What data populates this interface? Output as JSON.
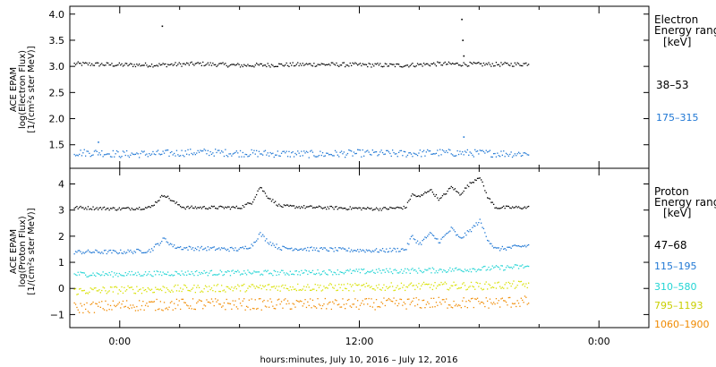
{
  "colors": {
    "frame": "#000000",
    "black": "#000000",
    "blue": "#1f77d4",
    "cyan": "#22d4d4",
    "yellow": "#d8e000",
    "orange": "#f08a00"
  },
  "chart_data": [
    {
      "type": "scatter",
      "panel": "electron",
      "title": "",
      "ylabel_lines": [
        "ACE EPAM",
        "log(Electron Flux)",
        "[1/(cm²s ster MeV)]"
      ],
      "ylim": [
        1.05,
        4.15
      ],
      "ytick_labels": [
        "1.5",
        "2.0",
        "2.5",
        "3.0",
        "3.5",
        "4.0"
      ],
      "yticks": [
        1.5,
        2.0,
        2.5,
        3.0,
        3.5,
        4.0
      ],
      "grid": false,
      "legend": {
        "placement": "right",
        "heading_lines": [
          "Electron",
          "Energy range",
          "[keV]"
        ],
        "entries": [
          "38–53",
          "175–315"
        ]
      },
      "series": [
        {
          "name": "38–53",
          "color": "black",
          "values": [
            [
              -2.3,
              3.05
            ],
            [
              -1,
              3.04
            ],
            [
              0,
              3.03
            ],
            [
              2,
              3.03
            ],
            [
              4,
              3.05
            ],
            [
              6,
              3.02
            ],
            [
              8,
              3.03
            ],
            [
              10,
              3.04
            ],
            [
              12,
              3.03
            ],
            [
              14,
              3.02
            ],
            [
              16,
              3.05
            ],
            [
              18,
              3.04
            ],
            [
              20,
              3.04
            ],
            [
              20.5,
              3.06
            ]
          ],
          "noise": 0.04,
          "outliers": [
            [
              2.1,
              3.77
            ],
            [
              17.1,
              3.9
            ],
            [
              17.15,
              3.5
            ],
            [
              17.2,
              3.2
            ]
          ]
        },
        {
          "name": "175–315",
          "color": "blue",
          "values": [
            [
              -2.3,
              1.35
            ],
            [
              -1,
              1.35
            ],
            [
              0,
              1.32
            ],
            [
              2,
              1.33
            ],
            [
              4,
              1.36
            ],
            [
              6,
              1.34
            ],
            [
              8,
              1.33
            ],
            [
              10,
              1.32
            ],
            [
              12,
              1.34
            ],
            [
              14,
              1.33
            ],
            [
              16,
              1.35
            ],
            [
              18,
              1.34
            ],
            [
              20,
              1.33
            ],
            [
              20.5,
              1.34
            ]
          ],
          "noise": 0.07,
          "outliers": [
            [
              -1.1,
              1.55
            ],
            [
              17.2,
              1.65
            ]
          ]
        }
      ]
    },
    {
      "type": "scatter",
      "panel": "proton",
      "title": "",
      "ylabel_lines": [
        "ACE EPAM",
        "log(Proton Flux)",
        "[1/(cm²s ster MeV)]"
      ],
      "ylim": [
        -1.5,
        4.6
      ],
      "ytick_labels": [
        "−1",
        "0",
        "1",
        "2",
        "3",
        "4"
      ],
      "yticks": [
        -1,
        0,
        1,
        2,
        3,
        4
      ],
      "xlim": [
        -2.5,
        26.5
      ],
      "xticks": [
        0,
        12,
        24
      ],
      "xtick_labels": [
        "0:00",
        "12:00",
        "0:00"
      ],
      "xlabel": "hours:minutes, July 10, 2016 – July 12, 2016",
      "grid": false,
      "legend": {
        "placement": "right",
        "heading_lines": [
          "Proton",
          "Energy range",
          "[keV]"
        ],
        "entries": [
          "47–68",
          "115–195",
          "310–580",
          "795–1193",
          "1060–1900"
        ]
      },
      "series": [
        {
          "name": "47–68",
          "color": "black",
          "values": [
            [
              -2.3,
              3.1
            ],
            [
              0,
              3.05
            ],
            [
              1.5,
              3.1
            ],
            [
              2.2,
              3.6
            ],
            [
              2.7,
              3.3
            ],
            [
              3.2,
              3.1
            ],
            [
              6,
              3.1
            ],
            [
              6.6,
              3.3
            ],
            [
              7,
              3.9
            ],
            [
              7.4,
              3.5
            ],
            [
              8,
              3.15
            ],
            [
              10,
              3.1
            ],
            [
              13,
              3.05
            ],
            [
              14.3,
              3.1
            ],
            [
              14.6,
              3.6
            ],
            [
              15,
              3.5
            ],
            [
              15.5,
              3.8
            ],
            [
              16,
              3.4
            ],
            [
              16.6,
              3.9
            ],
            [
              17,
              3.6
            ],
            [
              17.5,
              4.0
            ],
            [
              18,
              4.3
            ],
            [
              18.4,
              3.5
            ],
            [
              18.8,
              3.1
            ],
            [
              20.5,
              3.1
            ]
          ],
          "noise": 0.06
        },
        {
          "name": "115–195",
          "color": "blue",
          "values": [
            [
              -2.3,
              1.4
            ],
            [
              0,
              1.4
            ],
            [
              1.5,
              1.45
            ],
            [
              2.2,
              1.9
            ],
            [
              2.7,
              1.6
            ],
            [
              3.2,
              1.55
            ],
            [
              6,
              1.5
            ],
            [
              6.6,
              1.65
            ],
            [
              7,
              2.1
            ],
            [
              7.4,
              1.8
            ],
            [
              8,
              1.55
            ],
            [
              10,
              1.5
            ],
            [
              13,
              1.45
            ],
            [
              14.3,
              1.5
            ],
            [
              14.6,
              2.0
            ],
            [
              15,
              1.7
            ],
            [
              15.5,
              2.1
            ],
            [
              16,
              1.8
            ],
            [
              16.6,
              2.3
            ],
            [
              17,
              1.9
            ],
            [
              17.5,
              2.2
            ],
            [
              18,
              2.6
            ],
            [
              18.4,
              1.9
            ],
            [
              18.8,
              1.5
            ],
            [
              20.5,
              1.65
            ]
          ],
          "noise": 0.08
        },
        {
          "name": "310–580",
          "color": "cyan",
          "values": [
            [
              -2.3,
              0.55
            ],
            [
              0,
              0.55
            ],
            [
              4,
              0.6
            ],
            [
              8,
              0.6
            ],
            [
              12,
              0.65
            ],
            [
              16,
              0.7
            ],
            [
              18,
              0.75
            ],
            [
              20.5,
              0.85
            ]
          ],
          "noise": 0.1
        },
        {
          "name": "795–1193",
          "color": "yellow",
          "values": [
            [
              -2.3,
              -0.1
            ],
            [
              0,
              -0.05
            ],
            [
              4,
              0.0
            ],
            [
              8,
              0.05
            ],
            [
              12,
              0.05
            ],
            [
              16,
              0.1
            ],
            [
              18,
              0.1
            ],
            [
              20.5,
              0.15
            ]
          ],
          "noise": 0.15
        },
        {
          "name": "1060–1900",
          "color": "orange",
          "values": [
            [
              -2.3,
              -0.75
            ],
            [
              0,
              -0.65
            ],
            [
              4,
              -0.6
            ],
            [
              8,
              -0.6
            ],
            [
              12,
              -0.6
            ],
            [
              16,
              -0.55
            ],
            [
              18,
              -0.55
            ],
            [
              20.5,
              -0.5
            ]
          ],
          "noise": 0.22
        }
      ]
    }
  ]
}
